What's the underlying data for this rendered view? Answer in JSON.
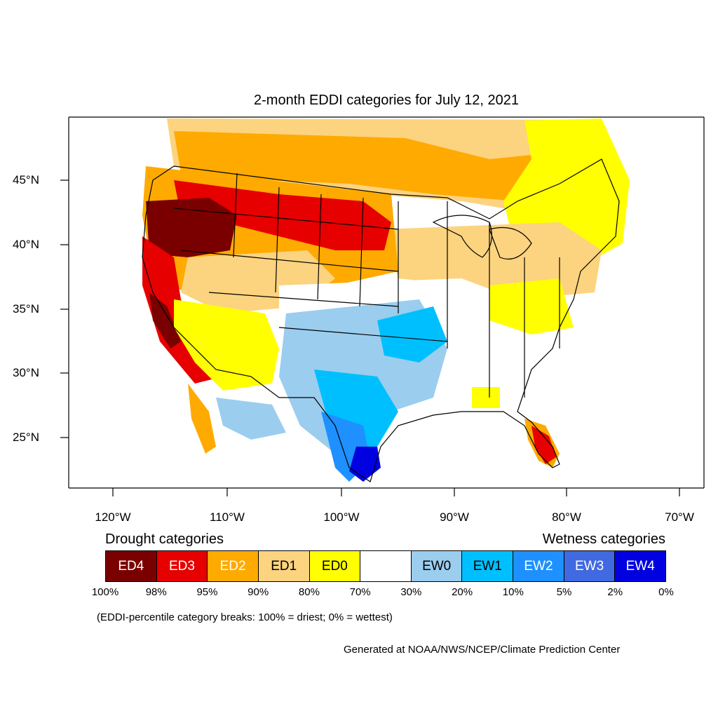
{
  "title": "2-month EDDI categories for July 12, 2021",
  "lat_labels": [
    "45°N",
    "40°N",
    "35°N",
    "30°N",
    "25°N"
  ],
  "lon_labels": [
    "120°W",
    "110°W",
    "100°W",
    "90°W",
    "80°W",
    "70°W"
  ],
  "legend": {
    "drought_heading": "Drought categories",
    "wetness_heading": "Wetness categories",
    "categories": [
      {
        "label": "ED4",
        "color": "#7a0000",
        "text_color": "#ffffff"
      },
      {
        "label": "ED3",
        "color": "#e60000",
        "text_color": "#ffffff"
      },
      {
        "label": "ED2",
        "color": "#ffaa00",
        "text_color": "#ffffff"
      },
      {
        "label": "ED1",
        "color": "#fcd37f",
        "text_color": "#000000"
      },
      {
        "label": "ED0",
        "color": "#ffff00",
        "text_color": "#000000"
      },
      {
        "label": "",
        "color": "#ffffff",
        "text_color": "#000000"
      },
      {
        "label": "EW0",
        "color": "#9bcdee",
        "text_color": "#000000"
      },
      {
        "label": "EW1",
        "color": "#00bfff",
        "text_color": "#000000"
      },
      {
        "label": "EW2",
        "color": "#1e90ff",
        "text_color": "#ffffff"
      },
      {
        "label": "EW3",
        "color": "#4169e1",
        "text_color": "#ffffff"
      },
      {
        "label": "EW4",
        "color": "#0000e0",
        "text_color": "#ffffff"
      }
    ],
    "percentiles": [
      "100%",
      "98%",
      "95%",
      "90%",
      "80%",
      "70%",
      "30%",
      "20%",
      "10%",
      "5%",
      "2%",
      "0%"
    ]
  },
  "note": "(EDDI-percentile category breaks: 100% = driest; 0% = wettest)",
  "credit": "Generated at NOAA/NWS/NCEP/Climate Prediction Center"
}
